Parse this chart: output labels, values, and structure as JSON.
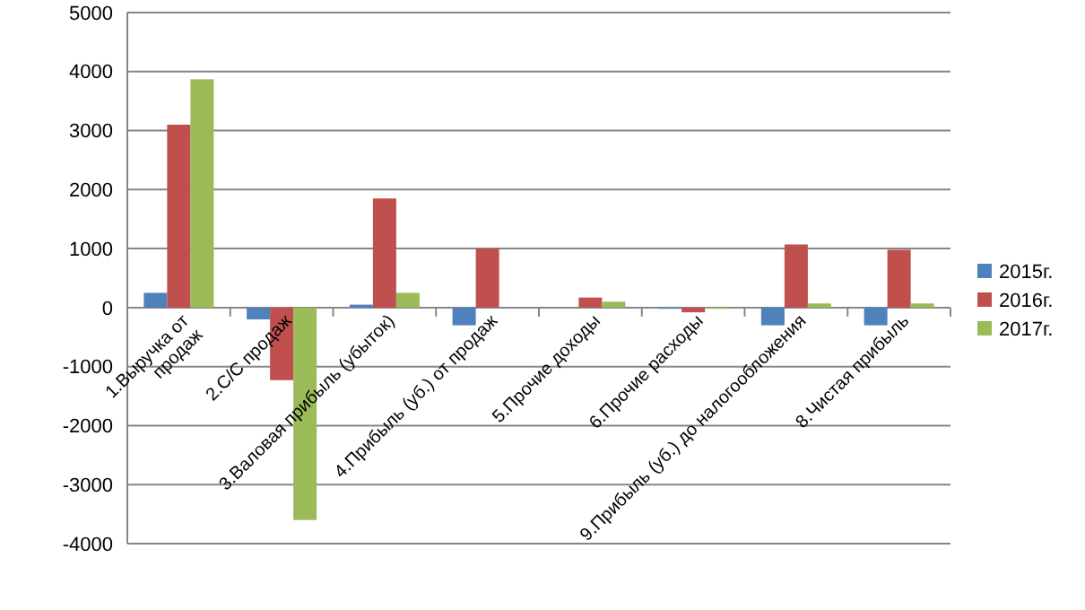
{
  "chart_data": {
    "type": "bar",
    "categories": [
      "1.Выручка от продаж",
      "2.С/С продаж",
      "3.Валовая прибыль (убыток)",
      "4.Прибыль (уб.) от продаж",
      "5.Прочие доходы",
      "6.Прочие расходы",
      "9.Прибыль (уб.) до налогообложения",
      "8.Чистая прибыль"
    ],
    "series": [
      {
        "name": "2015г.",
        "color": "#4f81bd",
        "values": [
          250,
          -200,
          50,
          -300,
          0,
          -20,
          -300,
          -300
        ]
      },
      {
        "name": "2016г.",
        "color": "#c0504d",
        "values": [
          3100,
          -1230,
          1850,
          1000,
          170,
          -80,
          1070,
          980
        ]
      },
      {
        "name": "2017г.",
        "color": "#9bbb59",
        "values": [
          3870,
          -3600,
          250,
          0,
          100,
          -20,
          70,
          70
        ]
      }
    ],
    "ylim": [
      -4000,
      5000
    ],
    "yticks": [
      -4000,
      -3000,
      -2000,
      -1000,
      0,
      1000,
      2000,
      3000,
      4000,
      5000
    ],
    "grid": "y",
    "legend": "right"
  }
}
